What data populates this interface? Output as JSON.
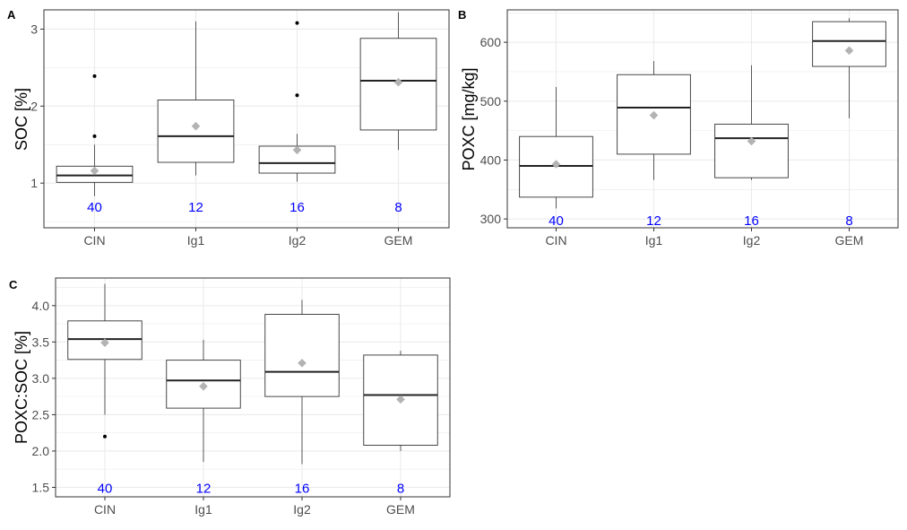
{
  "colors": {
    "grid": "#ebebeb",
    "box_line": "#333333",
    "mean_marker": "#b3b3b3",
    "count_label": "#0000ff",
    "axis_text": "#4d4d4d",
    "axis_title": "#000000"
  },
  "chart_data": [
    {
      "panel_tag": "A",
      "type": "box",
      "xlabel": "",
      "ylabel": "SOC [%]",
      "categories": [
        "CIN",
        "Ig1",
        "Ig2",
        "GEM"
      ],
      "ylim": [
        0.42,
        3.25
      ],
      "yticks": [
        1,
        2,
        3
      ],
      "ytick_labels": [
        "1",
        "2",
        "3"
      ],
      "grid": true,
      "count_label_y": 0.7,
      "boxes": [
        {
          "category": "CIN",
          "whisker_low": 0.83,
          "q1": 1.01,
          "median": 1.1,
          "q3": 1.22,
          "whisker_high": 1.5,
          "mean": 1.16,
          "outliers": [
            1.61,
            2.39
          ],
          "n": "40"
        },
        {
          "category": "Ig1",
          "whisker_low": 1.1,
          "q1": 1.27,
          "median": 1.61,
          "q3": 2.08,
          "whisker_high": 3.1,
          "mean": 1.74,
          "outliers": [],
          "n": "12"
        },
        {
          "category": "Ig2",
          "whisker_low": 1.02,
          "q1": 1.13,
          "median": 1.26,
          "q3": 1.48,
          "whisker_high": 1.64,
          "mean": 1.43,
          "outliers": [
            2.14,
            3.08
          ],
          "n": "16"
        },
        {
          "category": "GEM",
          "whisker_low": 1.43,
          "q1": 1.69,
          "median": 2.33,
          "q3": 2.88,
          "whisker_high": 3.22,
          "mean": 2.31,
          "outliers": [],
          "n": "8"
        }
      ]
    },
    {
      "panel_tag": "B",
      "type": "box",
      "xlabel": "",
      "ylabel": "POXC [mg/kg]",
      "categories": [
        "CIN",
        "Ig1",
        "Ig2",
        "GEM"
      ],
      "ylim": [
        285,
        655
      ],
      "yticks": [
        300,
        400,
        500,
        600
      ],
      "ytick_labels": [
        "300",
        "400",
        "500",
        "600"
      ],
      "grid": true,
      "count_label_y": 299,
      "boxes": [
        {
          "category": "CIN",
          "whisker_low": 318,
          "q1": 337,
          "median": 390,
          "q3": 440,
          "whisker_high": 524,
          "mean": 393,
          "outliers": [],
          "n": "40"
        },
        {
          "category": "Ig1",
          "whisker_low": 366,
          "q1": 410,
          "median": 489,
          "q3": 545,
          "whisker_high": 568,
          "mean": 476,
          "outliers": [],
          "n": "12"
        },
        {
          "category": "Ig2",
          "whisker_low": 366,
          "q1": 370,
          "median": 437,
          "q3": 461,
          "whisker_high": 561,
          "mean": 432,
          "outliers": [],
          "n": "16"
        },
        {
          "category": "GEM",
          "whisker_low": 471,
          "q1": 559,
          "median": 602,
          "q3": 635,
          "whisker_high": 641,
          "mean": 586,
          "outliers": [],
          "n": "8"
        }
      ]
    },
    {
      "panel_tag": "C",
      "type": "box",
      "xlabel": "",
      "ylabel": "POXC:SOC [%]",
      "categories": [
        "CIN",
        "Ig1",
        "Ig2",
        "GEM"
      ],
      "ylim": [
        1.37,
        4.38
      ],
      "yticks": [
        1.5,
        2.0,
        2.5,
        3.0,
        3.5,
        4.0
      ],
      "ytick_labels": [
        "1.5",
        "2.0",
        "2.5",
        "3.0",
        "3.5",
        "4.0"
      ],
      "grid": true,
      "count_label_y": 1.5,
      "boxes": [
        {
          "category": "CIN",
          "whisker_low": 2.5,
          "q1": 3.26,
          "median": 3.54,
          "q3": 3.79,
          "whisker_high": 4.3,
          "mean": 3.49,
          "outliers": [
            2.2
          ],
          "n": "40"
        },
        {
          "category": "Ig1",
          "whisker_low": 1.85,
          "q1": 2.59,
          "median": 2.97,
          "q3": 3.25,
          "whisker_high": 3.53,
          "mean": 2.89,
          "outliers": [],
          "n": "12"
        },
        {
          "category": "Ig2",
          "whisker_low": 1.82,
          "q1": 2.75,
          "median": 3.09,
          "q3": 3.88,
          "whisker_high": 4.08,
          "mean": 3.21,
          "outliers": [],
          "n": "16"
        },
        {
          "category": "GEM",
          "whisker_low": 2.0,
          "q1": 2.08,
          "median": 2.77,
          "q3": 3.32,
          "whisker_high": 3.38,
          "mean": 2.71,
          "outliers": [],
          "n": "8"
        }
      ]
    }
  ]
}
